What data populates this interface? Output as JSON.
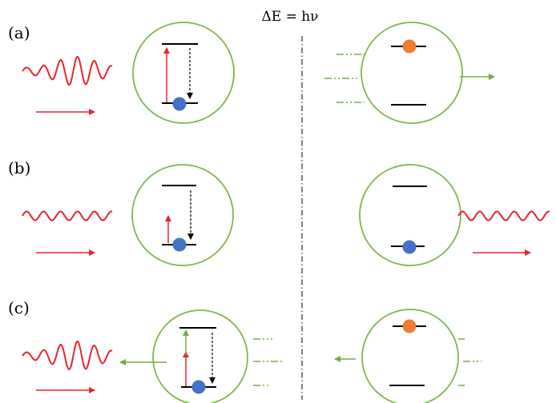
{
  "equation": "ΔE = hν",
  "panels": [
    {
      "label": "(a)"
    },
    {
      "label": "(b)"
    },
    {
      "label": "(c)"
    }
  ],
  "colors": {
    "wave": "#e8242b",
    "atom_outline": "#7db74a",
    "ground_electron": "#4472c4",
    "excited_electron": "#ed7d31",
    "level": "#000000",
    "green_arrow": "#70ad47"
  }
}
